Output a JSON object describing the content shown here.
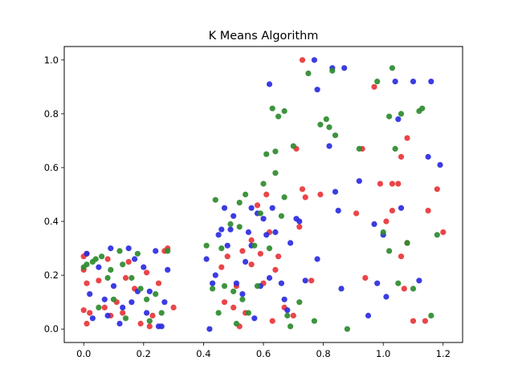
{
  "chart_data": {
    "type": "scatter",
    "title": "K Means Algorithm",
    "xlabel": "",
    "ylabel": "",
    "xlim": [
      -0.065,
      1.265
    ],
    "ylim": [
      -0.05,
      1.05
    ],
    "xticks": [
      0.0,
      0.2,
      0.4,
      0.6,
      0.8,
      1.0,
      1.2
    ],
    "xtick_labels": [
      "0.0",
      "0.2",
      "0.4",
      "0.6",
      "0.8",
      "1.0",
      "1.2"
    ],
    "yticks": [
      0.0,
      0.2,
      0.4,
      0.6,
      0.8,
      1.0
    ],
    "ytick_labels": [
      "0.0",
      "0.2",
      "0.4",
      "0.6",
      "0.8",
      "1.0"
    ],
    "grid": false,
    "legend": "none",
    "colors": {
      "red": "#e8353a",
      "blue": "#2b2be0",
      "green": "#2e8b2e"
    },
    "series": [
      {
        "color": "#e8353a",
        "points": [
          [
            0.0,
            0.27
          ],
          [
            0.01,
            0.28
          ],
          [
            0.0,
            0.22
          ],
          [
            0.01,
            0.17
          ],
          [
            0.0,
            0.07
          ],
          [
            0.01,
            0.02
          ],
          [
            0.02,
            0.06
          ],
          [
            0.05,
            0.18
          ],
          [
            0.07,
            0.08
          ],
          [
            0.09,
            0.05
          ],
          [
            0.08,
            0.26
          ],
          [
            0.11,
            0.1
          ],
          [
            0.13,
            0.06
          ],
          [
            0.14,
            0.19
          ],
          [
            0.15,
            0.25
          ],
          [
            0.17,
            0.15
          ],
          [
            0.19,
            0.02
          ],
          [
            0.21,
            0.21
          ],
          [
            0.22,
            0.01
          ],
          [
            0.23,
            0.05
          ],
          [
            0.25,
            0.17
          ],
          [
            0.27,
            0.29
          ],
          [
            0.28,
            0.3
          ],
          [
            0.3,
            0.08
          ],
          [
            0.46,
            0.23
          ],
          [
            0.47,
            0.1
          ],
          [
            0.48,
            0.27
          ],
          [
            0.5,
            0.08
          ],
          [
            0.51,
            0.16
          ],
          [
            0.52,
            0.01
          ],
          [
            0.53,
            0.29
          ],
          [
            0.54,
            0.06
          ],
          [
            0.56,
            0.24
          ],
          [
            0.56,
            0.33
          ],
          [
            0.58,
            0.46
          ],
          [
            0.59,
            0.28
          ],
          [
            0.6,
            0.17
          ],
          [
            0.62,
            0.36
          ],
          [
            0.63,
            0.03
          ],
          [
            0.64,
            0.22
          ],
          [
            0.65,
            0.27
          ],
          [
            0.67,
            0.08
          ],
          [
            0.7,
            0.05
          ],
          [
            0.72,
            0.38
          ],
          [
            0.73,
            0.52
          ],
          [
            0.73,
            1.0
          ],
          [
            0.74,
            0.49
          ],
          [
            0.76,
            0.18
          ],
          [
            0.79,
            0.5
          ],
          [
            0.91,
            0.43
          ],
          [
            0.93,
            0.67
          ],
          [
            0.94,
            0.19
          ],
          [
            0.97,
            0.9
          ],
          [
            0.99,
            0.54
          ],
          [
            1.01,
            0.4
          ],
          [
            1.03,
            0.54
          ],
          [
            1.05,
            0.54
          ],
          [
            1.06,
            0.27
          ],
          [
            1.07,
            0.15
          ],
          [
            1.08,
            0.71
          ],
          [
            1.08,
            0.32
          ],
          [
            1.1,
            0.03
          ],
          [
            1.14,
            0.03
          ],
          [
            1.15,
            0.44
          ],
          [
            1.18,
            0.52
          ],
          [
            1.2,
            0.36
          ],
          [
            1.06,
            0.64
          ],
          [
            1.03,
            0.44
          ],
          [
            0.61,
            0.5
          ],
          [
            0.71,
            0.67
          ]
        ]
      },
      {
        "color": "#2b2be0",
        "points": [
          [
            0.01,
            0.28
          ],
          [
            0.02,
            0.13
          ],
          [
            0.03,
            0.04
          ],
          [
            0.05,
            0.23
          ],
          [
            0.07,
            0.11
          ],
          [
            0.08,
            0.05
          ],
          [
            0.09,
            0.3
          ],
          [
            0.1,
            0.16
          ],
          [
            0.12,
            0.02
          ],
          [
            0.13,
            0.08
          ],
          [
            0.15,
            0.3
          ],
          [
            0.16,
            0.1
          ],
          [
            0.17,
            0.26
          ],
          [
            0.18,
            0.14
          ],
          [
            0.2,
            0.23
          ],
          [
            0.21,
            0.06
          ],
          [
            0.22,
            0.14
          ],
          [
            0.24,
            0.29
          ],
          [
            0.25,
            0.01
          ],
          [
            0.26,
            0.01
          ],
          [
            0.27,
            0.1
          ],
          [
            0.28,
            0.22
          ],
          [
            0.41,
            0.26
          ],
          [
            0.42,
            0.0
          ],
          [
            0.43,
            0.17
          ],
          [
            0.44,
            0.2
          ],
          [
            0.45,
            0.35
          ],
          [
            0.46,
            0.37
          ],
          [
            0.47,
            0.45
          ],
          [
            0.48,
            0.31
          ],
          [
            0.49,
            0.37
          ],
          [
            0.5,
            0.42
          ],
          [
            0.51,
            0.17
          ],
          [
            0.53,
            0.13
          ],
          [
            0.54,
            0.25
          ],
          [
            0.55,
            0.36
          ],
          [
            0.56,
            0.45
          ],
          [
            0.57,
            0.04
          ],
          [
            0.58,
            0.43
          ],
          [
            0.59,
            0.16
          ],
          [
            0.6,
            0.41
          ],
          [
            0.61,
            0.35
          ],
          [
            0.62,
            0.19
          ],
          [
            0.63,
            0.45
          ],
          [
            0.64,
            0.36
          ],
          [
            0.66,
            0.17
          ],
          [
            0.67,
            0.11
          ],
          [
            0.68,
            0.07
          ],
          [
            0.69,
            0.32
          ],
          [
            0.71,
            0.41
          ],
          [
            0.72,
            0.4
          ],
          [
            0.74,
            0.18
          ],
          [
            0.77,
            1.0
          ],
          [
            0.78,
            0.26
          ],
          [
            0.82,
            0.68
          ],
          [
            0.83,
            0.97
          ],
          [
            0.84,
            0.51
          ],
          [
            0.86,
            0.15
          ],
          [
            0.87,
            0.97
          ],
          [
            0.92,
            0.55
          ],
          [
            0.95,
            0.05
          ],
          [
            0.97,
            0.39
          ],
          [
            0.98,
            0.17
          ],
          [
            1.0,
            0.35
          ],
          [
            1.01,
            0.12
          ],
          [
            1.04,
            0.92
          ],
          [
            1.05,
            0.78
          ],
          [
            1.06,
            0.45
          ],
          [
            1.1,
            0.92
          ],
          [
            1.12,
            0.18
          ],
          [
            1.15,
            0.64
          ],
          [
            1.16,
            0.92
          ],
          [
            1.19,
            0.61
          ],
          [
            0.62,
            0.91
          ],
          [
            0.78,
            0.89
          ],
          [
            0.85,
            0.44
          ],
          [
            0.56,
            0.31
          ]
        ]
      },
      {
        "color": "#2e8b2e",
        "points": [
          [
            0.0,
            0.23
          ],
          [
            0.01,
            0.24
          ],
          [
            0.03,
            0.25
          ],
          [
            0.04,
            0.26
          ],
          [
            0.05,
            0.08
          ],
          [
            0.06,
            0.27
          ],
          [
            0.08,
            0.19
          ],
          [
            0.09,
            0.22
          ],
          [
            0.1,
            0.11
          ],
          [
            0.12,
            0.29
          ],
          [
            0.13,
            0.24
          ],
          [
            0.14,
            0.04
          ],
          [
            0.16,
            0.19
          ],
          [
            0.18,
            0.28
          ],
          [
            0.19,
            0.15
          ],
          [
            0.21,
            0.11
          ],
          [
            0.22,
            0.03
          ],
          [
            0.24,
            0.13
          ],
          [
            0.26,
            0.06
          ],
          [
            0.28,
            0.29
          ],
          [
            0.41,
            0.31
          ],
          [
            0.43,
            0.15
          ],
          [
            0.44,
            0.48
          ],
          [
            0.45,
            0.06
          ],
          [
            0.46,
            0.3
          ],
          [
            0.47,
            0.16
          ],
          [
            0.49,
            0.39
          ],
          [
            0.5,
            0.14
          ],
          [
            0.51,
            0.02
          ],
          [
            0.52,
            0.47
          ],
          [
            0.53,
            0.11
          ],
          [
            0.54,
            0.5
          ],
          [
            0.55,
            0.06
          ],
          [
            0.57,
            0.31
          ],
          [
            0.58,
            0.16
          ],
          [
            0.59,
            0.43
          ],
          [
            0.6,
            0.54
          ],
          [
            0.61,
            0.65
          ],
          [
            0.62,
            0.3
          ],
          [
            0.63,
            0.82
          ],
          [
            0.64,
            0.58
          ],
          [
            0.65,
            0.79
          ],
          [
            0.66,
            0.42
          ],
          [
            0.67,
            0.81
          ],
          [
            0.68,
            0.05
          ],
          [
            0.69,
            0.01
          ],
          [
            0.7,
            0.68
          ],
          [
            0.72,
            0.1
          ],
          [
            0.75,
            0.95
          ],
          [
            0.77,
            0.03
          ],
          [
            0.79,
            0.76
          ],
          [
            0.81,
            0.78
          ],
          [
            0.82,
            0.75
          ],
          [
            0.83,
            0.96
          ],
          [
            0.84,
            0.72
          ],
          [
            0.88,
            0.0
          ],
          [
            0.92,
            0.67
          ],
          [
            0.98,
            0.92
          ],
          [
            1.0,
            0.36
          ],
          [
            1.02,
            0.29
          ],
          [
            1.02,
            0.79
          ],
          [
            1.03,
            0.97
          ],
          [
            1.04,
            0.67
          ],
          [
            1.05,
            0.17
          ],
          [
            1.06,
            0.8
          ],
          [
            1.08,
            0.32
          ],
          [
            1.1,
            0.15
          ],
          [
            1.12,
            0.81
          ],
          [
            1.13,
            0.82
          ],
          [
            1.16,
            0.05
          ],
          [
            1.18,
            0.35
          ],
          [
            0.64,
            0.66
          ],
          [
            0.52,
            0.38
          ],
          [
            0.67,
            0.49
          ]
        ]
      }
    ]
  }
}
